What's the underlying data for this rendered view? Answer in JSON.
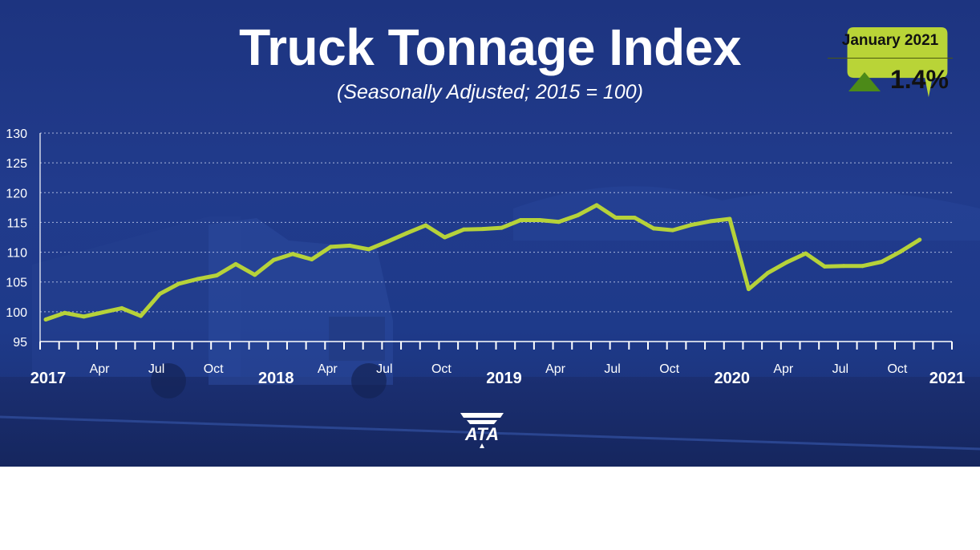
{
  "colors": {
    "background": "#1e3a8a",
    "line": "#b6d23a",
    "callout": "#b9d437",
    "callout_arrow": "#4c8a18",
    "text": "#ffffff"
  },
  "callout": {
    "month": "January 2021",
    "direction": "up-arrow-icon",
    "value": "1.4%"
  },
  "logo": {
    "text": "ATA"
  },
  "chart_data": {
    "type": "line",
    "title": "Truck Tonnage Index",
    "subtitle": "(Seasonally Adjusted; 2015 = 100)",
    "xlabel": "",
    "ylabel": "",
    "ylim": [
      95,
      130
    ],
    "yticks": [
      95,
      100,
      105,
      110,
      115,
      120,
      125,
      130
    ],
    "grid": "horizontal-dotted",
    "x_tick_labels": [
      {
        "label": "2017",
        "index": 0,
        "bold": true
      },
      {
        "label": "Apr",
        "index": 3,
        "bold": false
      },
      {
        "label": "Jul",
        "index": 6,
        "bold": false
      },
      {
        "label": "Oct",
        "index": 9,
        "bold": false
      },
      {
        "label": "2018",
        "index": 12,
        "bold": true
      },
      {
        "label": "Apr",
        "index": 15,
        "bold": false
      },
      {
        "label": "Jul",
        "index": 18,
        "bold": false
      },
      {
        "label": "Oct",
        "index": 21,
        "bold": false
      },
      {
        "label": "2019",
        "index": 24,
        "bold": true
      },
      {
        "label": "Apr",
        "index": 27,
        "bold": false
      },
      {
        "label": "Jul",
        "index": 30,
        "bold": false
      },
      {
        "label": "Oct",
        "index": 33,
        "bold": false
      },
      {
        "label": "2020",
        "index": 36,
        "bold": true
      },
      {
        "label": "Apr",
        "index": 39,
        "bold": false
      },
      {
        "label": "Jul",
        "index": 42,
        "bold": false
      },
      {
        "label": "Oct",
        "index": 45,
        "bold": false
      },
      {
        "label": "2021",
        "index": 48,
        "bold": true
      }
    ],
    "series": [
      {
        "values": [
          98.7,
          99.8,
          99.2,
          99.9,
          100.6,
          99.3,
          103.0,
          104.7,
          105.5,
          106.1,
          108.0,
          106.2,
          108.7,
          109.7,
          108.8,
          110.9,
          111.1,
          110.5,
          111.8,
          113.2,
          114.5,
          112.5,
          113.8,
          113.9,
          114.1,
          115.4,
          115.4,
          115.1,
          116.2,
          117.9,
          115.8,
          115.8,
          114.0,
          113.7,
          114.6,
          115.2,
          115.6,
          103.8,
          106.5,
          108.3,
          109.8,
          107.6,
          107.7,
          107.7,
          108.4,
          110.1,
          112.1
        ]
      }
    ]
  }
}
